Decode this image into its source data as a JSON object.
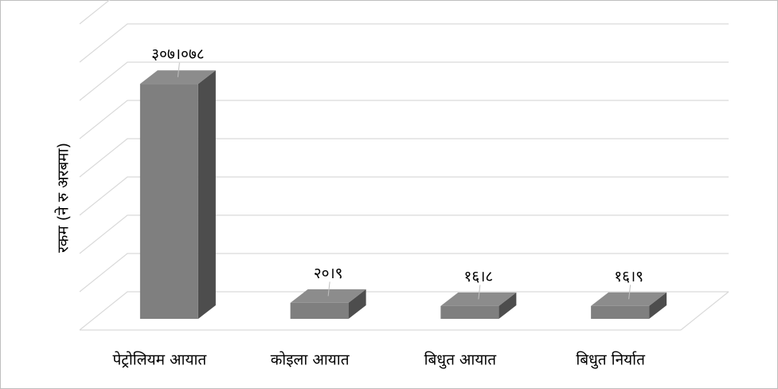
{
  "chart_data": {
    "type": "bar3d",
    "y_label": "रकम (ने रु अरबमा)",
    "categories": [
      "पेट्रोलियम आयात",
      "कोइला आयात",
      "बिधुत आयात",
      "बिधुत निर्यात"
    ],
    "values": [
      307.078,
      20.9,
      16.8,
      16.9
    ],
    "value_labels": [
      "३०७।०७८",
      "२०।९",
      "१६।८",
      "१६।९"
    ],
    "color": "#7f7f7f",
    "ylim": [
      0,
      400
    ],
    "yticks": [
      0,
      50,
      100,
      150,
      200,
      250,
      300,
      350,
      400
    ],
    "ytick_labels": false,
    "grid": true
  }
}
